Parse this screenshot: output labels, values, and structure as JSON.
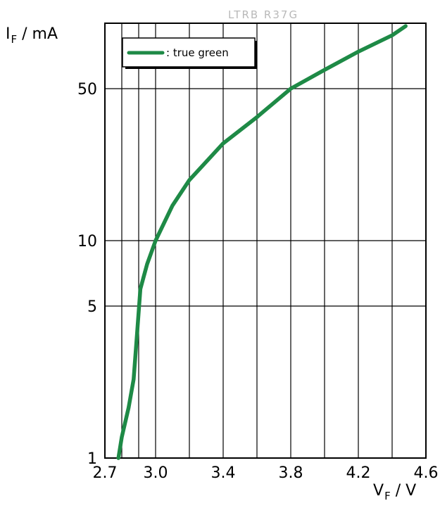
{
  "header_label": "LTRB R37G",
  "chart_data": {
    "type": "line",
    "xlabel": {
      "main": "V",
      "sub": "F",
      "unit": " / V"
    },
    "ylabel": {
      "main": "I",
      "sub": "F",
      "unit": " / mA"
    },
    "xlim": [
      2.7,
      4.6
    ],
    "ylim": [
      1,
      100
    ],
    "yscale": "log",
    "grid": true,
    "legend_position": "top-left",
    "x_ticks": [
      2.7,
      3.0,
      3.4,
      3.8,
      4.2,
      4.6
    ],
    "x_tick_labels": [
      "2.7",
      "3.0",
      "3.4",
      "3.8",
      "4.2",
      "4.6"
    ],
    "x_gridlines": [
      2.8,
      2.9,
      3.0,
      3.2,
      3.4,
      3.6,
      3.8,
      4.0,
      4.2,
      4.4
    ],
    "y_ticks": [
      1,
      5,
      10,
      50
    ],
    "y_tick_labels": [
      "1",
      "5",
      "10",
      "50"
    ],
    "series": [
      {
        "name": ": true green",
        "color": "#1e8a46",
        "x": [
          2.78,
          2.8,
          2.84,
          2.87,
          2.89,
          2.91,
          2.95,
          3.0,
          3.1,
          3.2,
          3.4,
          3.6,
          3.8,
          4.0,
          4.2,
          4.4,
          4.48
        ],
        "y": [
          1.0,
          1.25,
          1.7,
          2.3,
          3.7,
          6.0,
          7.8,
          10.0,
          14.5,
          19.0,
          28.0,
          37.0,
          50.0,
          61.0,
          74.0,
          88.0,
          97.0
        ]
      }
    ]
  }
}
